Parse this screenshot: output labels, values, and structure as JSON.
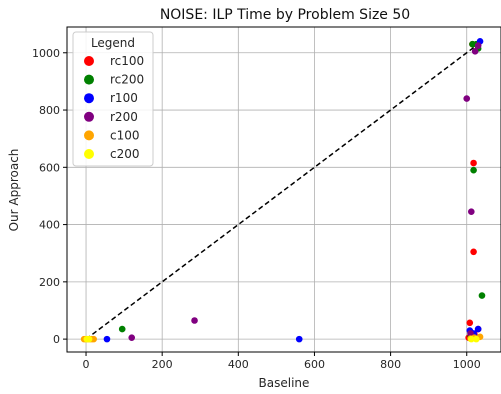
{
  "chart_data": {
    "type": "scatter",
    "title": "NOISE:  ILP Time by Problem Size 50",
    "xlabel": "Baseline",
    "ylabel": "Our Approach",
    "xlim": [
      -50,
      1090
    ],
    "ylim": [
      -45,
      1090
    ],
    "xticks": [
      0,
      200,
      400,
      600,
      800,
      1000
    ],
    "yticks": [
      0,
      200,
      400,
      600,
      800,
      1000
    ],
    "grid": true,
    "legend": {
      "title": "Legend",
      "placement": "top-left"
    },
    "diagonal": {
      "style": "dashed",
      "color": "#000000",
      "from": [
        0,
        0
      ],
      "to": [
        1030,
        1030
      ]
    },
    "series": [
      {
        "name": "rc100",
        "color": "#ff0000",
        "points": [
          [
            1015,
            1030
          ],
          [
            1018,
            615
          ],
          [
            1018,
            305
          ],
          [
            1008,
            57
          ],
          [
            1030,
            35
          ],
          [
            1020,
            18
          ],
          [
            1005,
            5
          ]
        ]
      },
      {
        "name": "rc200",
        "color": "#008000",
        "points": [
          [
            95,
            35
          ],
          [
            1018,
            590
          ],
          [
            1040,
            152
          ],
          [
            1015,
            1030
          ],
          [
            1025,
            1030
          ],
          [
            1030,
            1015
          ],
          [
            1010,
            8
          ]
        ]
      },
      {
        "name": "r100",
        "color": "#0000ff",
        "points": [
          [
            55,
            0
          ],
          [
            560,
            0
          ],
          [
            1035,
            1040
          ],
          [
            1030,
            35
          ],
          [
            1008,
            30
          ],
          [
            1018,
            20
          ],
          [
            1025,
            5
          ]
        ]
      },
      {
        "name": "r200",
        "color": "#800080",
        "points": [
          [
            120,
            5
          ],
          [
            285,
            65
          ],
          [
            1000,
            840
          ],
          [
            1012,
            445
          ],
          [
            1022,
            1005
          ],
          [
            1030,
            1025
          ],
          [
            1010,
            20
          ]
        ]
      },
      {
        "name": "c100",
        "color": "#ffa500",
        "points": [
          [
            0,
            0
          ],
          [
            5,
            0
          ],
          [
            10,
            0
          ],
          [
            15,
            0
          ],
          [
            20,
            0
          ],
          [
            -5,
            0
          ],
          [
            1010,
            2
          ],
          [
            1020,
            5
          ],
          [
            1035,
            8
          ]
        ]
      },
      {
        "name": "c200",
        "color": "#ffff00",
        "points": [
          [
            2,
            0
          ],
          [
            8,
            0
          ],
          [
            1012,
            0
          ],
          [
            1025,
            0
          ]
        ]
      }
    ]
  }
}
